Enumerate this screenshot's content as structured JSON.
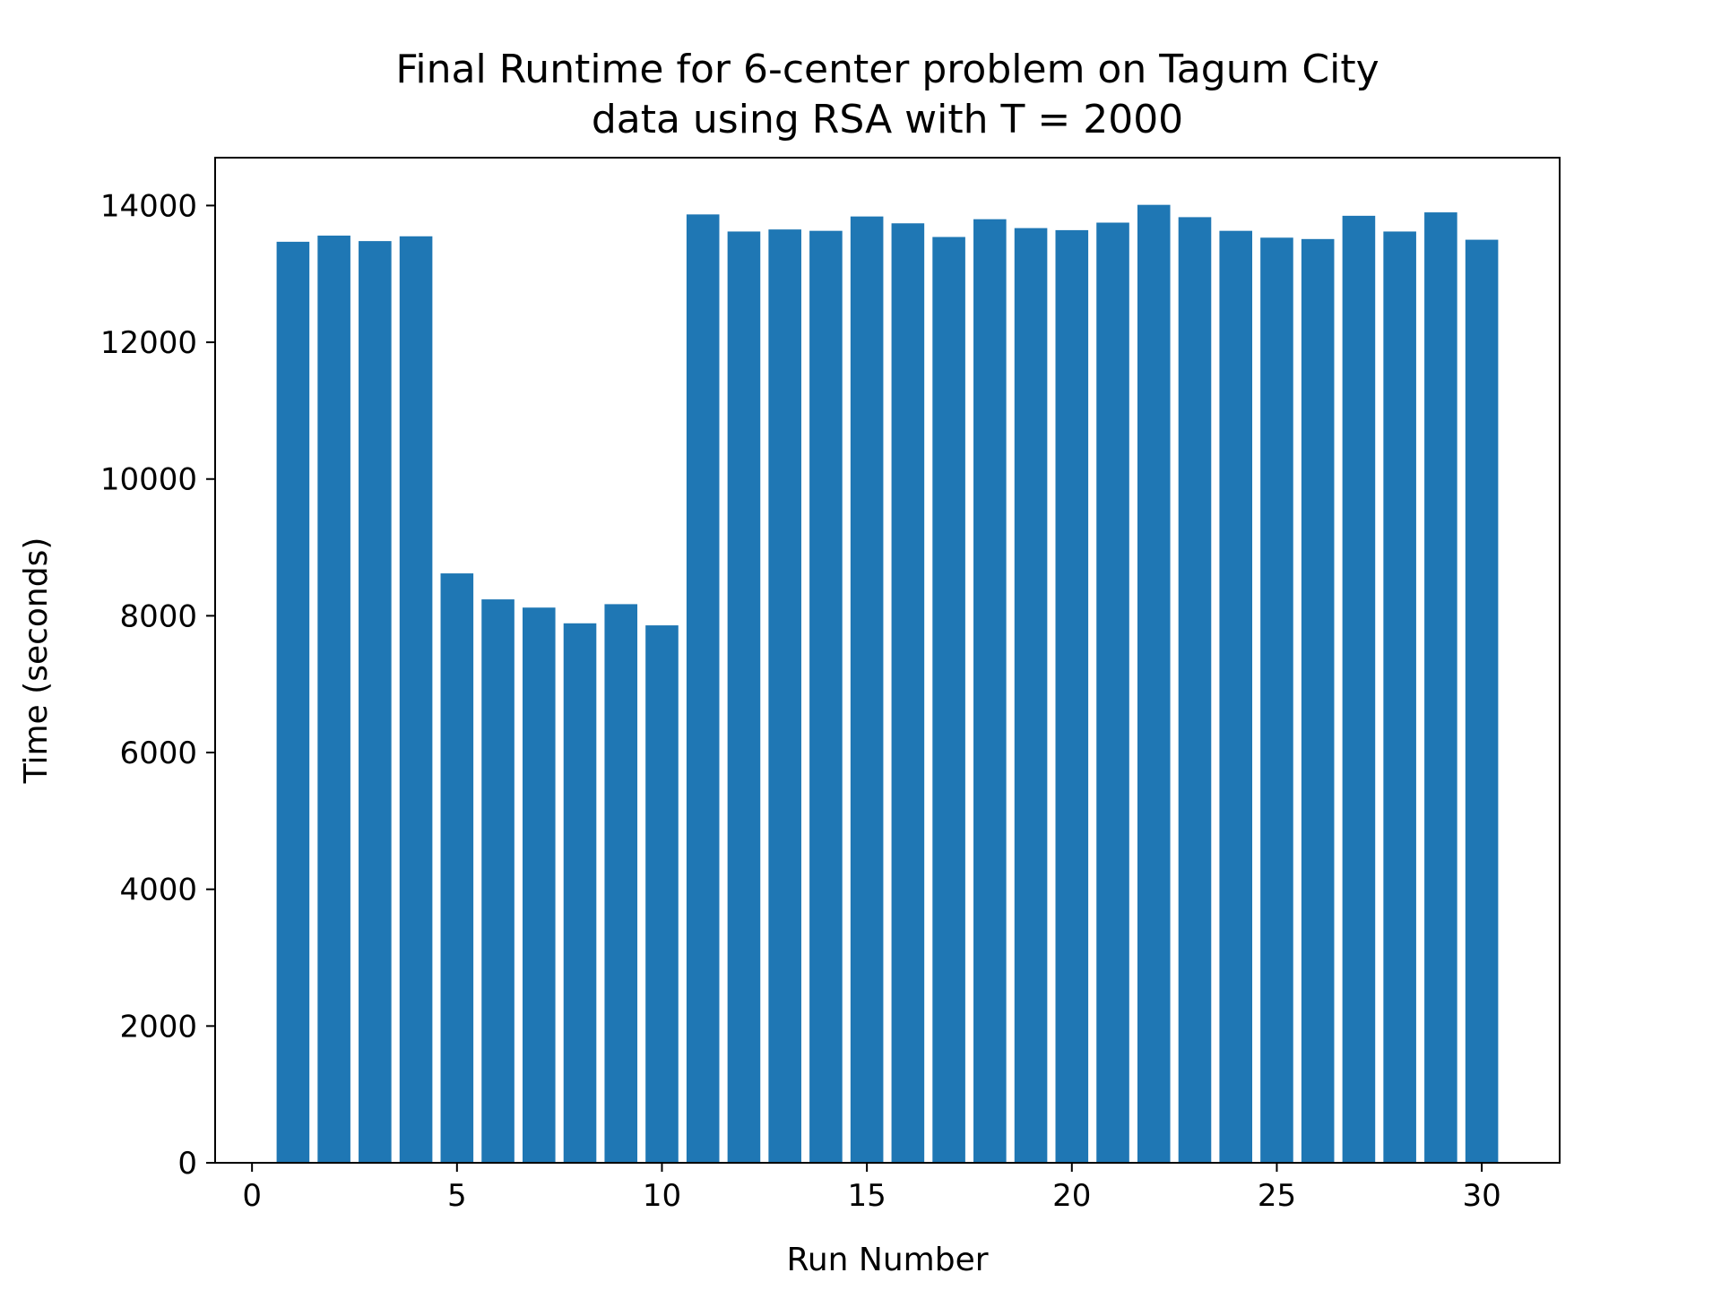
{
  "chart_data": {
    "type": "bar",
    "title_line1": "Final Runtime for 6-center problem on Tagum City",
    "title_line2": "data using RSA with T = 2000",
    "xlabel": "Run Number",
    "ylabel": "Time (seconds)",
    "x": [
      1,
      2,
      3,
      4,
      5,
      6,
      7,
      8,
      9,
      10,
      11,
      12,
      13,
      14,
      15,
      16,
      17,
      18,
      19,
      20,
      21,
      22,
      23,
      24,
      25,
      26,
      27,
      28,
      29,
      30
    ],
    "values": [
      13470,
      13560,
      13480,
      13550,
      8620,
      8240,
      8120,
      7890,
      8170,
      7860,
      13870,
      13620,
      13650,
      13630,
      13840,
      13740,
      13540,
      13800,
      13670,
      13640,
      13750,
      14010,
      13830,
      13630,
      13530,
      13510,
      13850,
      13620,
      13900,
      13500
    ],
    "xlim": [
      -0.9,
      31.9
    ],
    "ylim": [
      0,
      14700
    ],
    "xticks": [
      0,
      5,
      10,
      15,
      20,
      25,
      30
    ],
    "yticks": [
      0,
      2000,
      4000,
      6000,
      8000,
      10000,
      12000,
      14000
    ],
    "bar_color": "#1f77b4",
    "grid": false
  }
}
